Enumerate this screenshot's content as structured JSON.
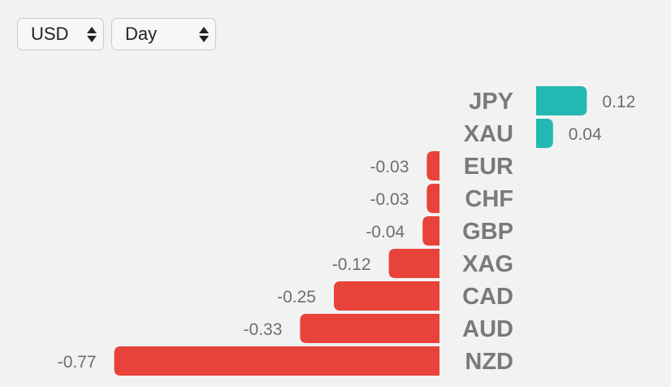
{
  "controls": {
    "currency": "USD",
    "period": "Day"
  },
  "colors": {
    "positive": "#23b9b2",
    "negative": "#e8433a",
    "label": "#7a7a7a",
    "value": "#6e6e6e"
  },
  "chart_data": {
    "type": "bar",
    "orientation": "horizontal",
    "categories": [
      "JPY",
      "XAU",
      "EUR",
      "CHF",
      "GBP",
      "XAG",
      "CAD",
      "AUD",
      "NZD"
    ],
    "values": [
      0.12,
      0.04,
      -0.03,
      -0.03,
      -0.04,
      -0.12,
      -0.25,
      -0.33,
      -0.77
    ],
    "value_labels": [
      "0.12",
      "0.04",
      "-0.03",
      "-0.03",
      "-0.04",
      "-0.12",
      "-0.25",
      "-0.33",
      "-0.77"
    ],
    "title": "",
    "xlabel": "",
    "ylabel": "",
    "grid": false,
    "legend": "none"
  }
}
